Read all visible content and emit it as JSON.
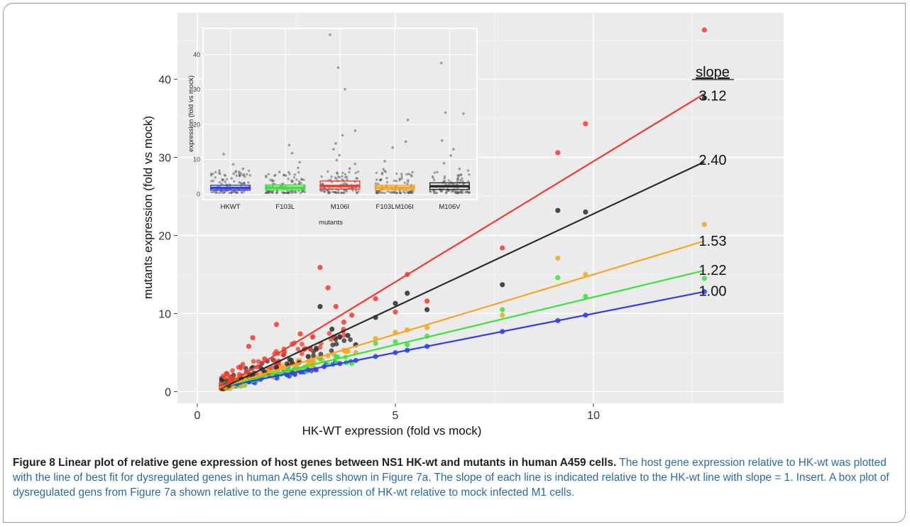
{
  "chart_data": [
    {
      "type": "scatter",
      "xlabel": "HK-WT expression (fold vs mock)",
      "ylabel": "mutants expression (fold vs mock)",
      "xlim": [
        -0.5,
        14.8
      ],
      "ylim": [
        -1.5,
        48.5
      ],
      "x_ticks": [
        0,
        5,
        10
      ],
      "y_ticks": [
        0,
        10,
        20,
        30,
        40
      ],
      "grid": true,
      "background": "#ebebeb",
      "legend_title": "slope",
      "series": [
        {
          "slope_label": "1.00",
          "color": "#2f3fe8",
          "fit": {
            "slope": 1.0,
            "intercept": 0.0
          },
          "x_end": 12.8,
          "points": [
            [
              0.7,
              0.7
            ],
            [
              1.0,
              1.0
            ],
            [
              1.3,
              1.3
            ],
            [
              1.6,
              1.6
            ],
            [
              2.0,
              2.0
            ],
            [
              2.4,
              2.4
            ],
            [
              2.8,
              2.8
            ],
            [
              3.2,
              3.2
            ],
            [
              3.6,
              3.6
            ],
            [
              4.0,
              4.0
            ],
            [
              4.5,
              4.5
            ],
            [
              5.0,
              5.0
            ],
            [
              5.3,
              5.3
            ],
            [
              5.8,
              5.8
            ],
            [
              7.7,
              7.7
            ],
            [
              9.1,
              9.1
            ],
            [
              9.8,
              9.8
            ],
            [
              12.8,
              12.8
            ]
          ]
        },
        {
          "slope_label": "1.22",
          "color": "#3ae33a",
          "fit": {
            "slope": 1.22,
            "intercept": -0.1
          },
          "x_end": 12.8,
          "points": [
            [
              0.8,
              0.7
            ],
            [
              1.1,
              1.3
            ],
            [
              1.5,
              1.6
            ],
            [
              1.9,
              2.4
            ],
            [
              2.3,
              2.8
            ],
            [
              2.7,
              3.1
            ],
            [
              3.1,
              4.2
            ],
            [
              3.5,
              4.5
            ],
            [
              3.9,
              3.6
            ],
            [
              4.5,
              6.2
            ],
            [
              5.0,
              6.4
            ],
            [
              5.3,
              6.0
            ],
            [
              5.8,
              7.1
            ],
            [
              7.7,
              10.5
            ],
            [
              9.1,
              14.6
            ],
            [
              9.8,
              12.2
            ],
            [
              12.8,
              14.5
            ]
          ]
        },
        {
          "slope_label": "1.53",
          "color": "#f5a623",
          "fit": {
            "slope": 1.53,
            "intercept": -0.3
          },
          "x_end": 12.8,
          "points": [
            [
              0.7,
              0.6
            ],
            [
              1.0,
              1.5
            ],
            [
              1.2,
              2.1
            ],
            [
              1.5,
              1.8
            ],
            [
              1.8,
              2.6
            ],
            [
              2.1,
              3.0
            ],
            [
              2.5,
              3.4
            ],
            [
              2.9,
              3.3
            ],
            [
              3.3,
              4.6
            ],
            [
              3.7,
              5.3
            ],
            [
              4.0,
              5.0
            ],
            [
              4.5,
              6.8
            ],
            [
              5.0,
              7.6
            ],
            [
              5.3,
              7.9
            ],
            [
              5.8,
              8.2
            ],
            [
              7.7,
              9.8
            ],
            [
              9.1,
              17.1
            ],
            [
              9.8,
              15.0
            ],
            [
              12.8,
              21.4
            ]
          ]
        },
        {
          "slope_label": "2.40",
          "color": "#2b2b2b",
          "fit": {
            "slope": 2.4,
            "intercept": -1.3
          },
          "x_end": 12.8,
          "points": [
            [
              0.8,
              0.8
            ],
            [
              1.1,
              1.6
            ],
            [
              1.4,
              2.0
            ],
            [
              1.7,
              2.5
            ],
            [
              2.0,
              3.1
            ],
            [
              2.4,
              3.6
            ],
            [
              2.8,
              4.5
            ],
            [
              3.1,
              10.9
            ],
            [
              3.4,
              8.0
            ],
            [
              3.6,
              7.0
            ],
            [
              3.8,
              7.2
            ],
            [
              4.0,
              6.0
            ],
            [
              4.5,
              9.5
            ],
            [
              5.0,
              11.3
            ],
            [
              5.3,
              12.6
            ],
            [
              5.8,
              10.5
            ],
            [
              7.7,
              13.7
            ],
            [
              9.1,
              23.2
            ],
            [
              9.8,
              23.0
            ],
            [
              12.8,
              37.6
            ]
          ]
        },
        {
          "slope_label": "3.12",
          "color": "#f23a2e",
          "fit": {
            "slope": 3.12,
            "intercept": -1.8
          },
          "x_end": 12.8,
          "points": [
            [
              0.8,
              1.2
            ],
            [
              1.1,
              3.2
            ],
            [
              1.3,
              5.8
            ],
            [
              1.4,
              6.9
            ],
            [
              1.7,
              4.2
            ],
            [
              2.0,
              8.6
            ],
            [
              2.2,
              5.1
            ],
            [
              2.4,
              6.1
            ],
            [
              2.6,
              7.4
            ],
            [
              3.1,
              15.9
            ],
            [
              3.3,
              13.3
            ],
            [
              3.5,
              10.9
            ],
            [
              3.7,
              8.9
            ],
            [
              3.9,
              9.8
            ],
            [
              4.5,
              11.9
            ],
            [
              5.0,
              10.2
            ],
            [
              5.3,
              15.0
            ],
            [
              5.8,
              11.6
            ],
            [
              7.7,
              18.4
            ],
            [
              9.1,
              30.6
            ],
            [
              9.8,
              34.3
            ],
            [
              12.8,
              46.3
            ]
          ]
        }
      ]
    },
    {
      "type": "box",
      "ylabel": "expression (fold vs mock)",
      "xlabel": "mutants",
      "ylim": [
        -1.5,
        47.5
      ],
      "y_ticks": [
        0,
        10,
        20,
        30,
        40
      ],
      "categories": [
        "HKWT",
        "F103L",
        "M106I",
        "F103LM106I",
        "M106V"
      ],
      "colors": [
        "#2f3fe8",
        "#3ae33a",
        "#f23a2e",
        "#f5a623",
        "#2b2b2b"
      ],
      "boxes": [
        {
          "q1": 1.2,
          "median": 1.8,
          "q3": 2.6
        },
        {
          "q1": 1.3,
          "median": 1.9,
          "q3": 2.7
        },
        {
          "q1": 1.5,
          "median": 2.4,
          "q3": 3.8
        },
        {
          "q1": 1.3,
          "median": 1.9,
          "q3": 2.6
        },
        {
          "q1": 1.4,
          "median": 2.3,
          "q3": 3.3
        }
      ],
      "outliers": [
        [
          11.5,
          8.6,
          7.3,
          6.8,
          5.9,
          5.1,
          4.6
        ],
        [
          14.1,
          11.8,
          9.2,
          7.6,
          6.4,
          5.5
        ],
        [
          45.7,
          36.3,
          30.1,
          18.2,
          16.9,
          14.6,
          12.9,
          11.2,
          9.8,
          8.7,
          7.4,
          6.2
        ],
        [
          21.3,
          15.1,
          13.4,
          9.5,
          7.2,
          5.8
        ],
        [
          37.6,
          23.4,
          23.1,
          15.4,
          12.9,
          11.1,
          8.9,
          7.3
        ]
      ]
    }
  ],
  "caption": {
    "title": "Figure 8 Linear plot of relative gene expression of host genes between NS1 HK-wt and mutants in human A459 cells.",
    "body": " The host gene expression relative to HK-wt was plotted with the line of best fit for dysregulated genes in human A459 cells shown in Figure 7a. The slope of each line is indicated relative to the HK-wt line with slope = 1. Insert. A box plot of dysregulated gens from Figure 7a shown relative to the gene expression of HK-wt relative to mock infected M1 cells."
  }
}
